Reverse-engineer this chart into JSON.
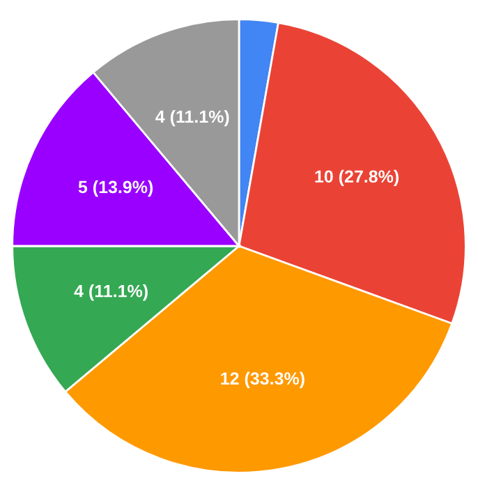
{
  "chart_data": {
    "type": "pie",
    "categories": [
      null,
      null,
      null,
      null,
      null,
      null
    ],
    "values": [
      1,
      10,
      12,
      4,
      5,
      4
    ],
    "colors": [
      "#4285f4",
      "#ea4335",
      "#ff9900",
      "#34a853",
      "#9900ff",
      "#999999"
    ],
    "value_labels": [
      null,
      "10 (27.8%)",
      "12 (33.3%)",
      "4 (11.1%)",
      "5 (13.9%)",
      "4 (11.1%)"
    ],
    "legend": false
  }
}
